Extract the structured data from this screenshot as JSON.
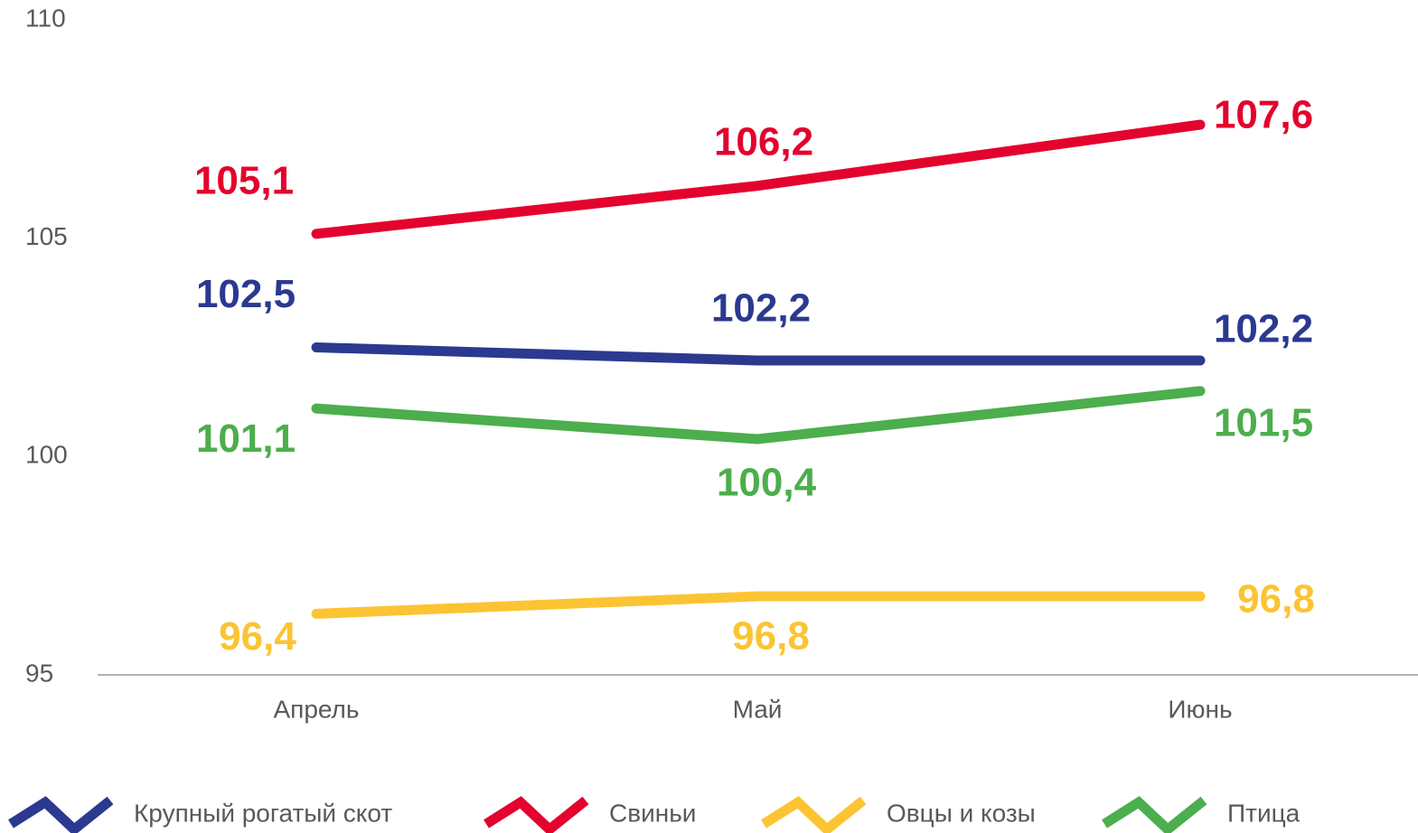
{
  "chart_data": {
    "type": "line",
    "categories": [
      "Апрель",
      "Май",
      "Июнь"
    ],
    "series": [
      {
        "name": "Крупный рогатый скот",
        "color": "#2b3990",
        "values": [
          102.5,
          102.2,
          102.2
        ],
        "value_labels": [
          "102,5",
          "102,2",
          "102,2"
        ]
      },
      {
        "name": "Свиньи",
        "color": "#e3032d",
        "values": [
          105.1,
          106.2,
          107.6
        ],
        "value_labels": [
          "105,1",
          "106,2",
          "107,6"
        ]
      },
      {
        "name": "Овцы и козы",
        "color": "#fcc433",
        "values": [
          96.4,
          96.8,
          96.8
        ],
        "value_labels": [
          "96,4",
          "96,8",
          "96,8"
        ]
      },
      {
        "name": "Птица",
        "color": "#4cae4c",
        "values": [
          101.1,
          100.4,
          101.5
        ],
        "value_labels": [
          "101,1",
          "100,4",
          "101,5"
        ]
      }
    ],
    "ylim": [
      95,
      110
    ],
    "yticks": [
      95,
      100,
      105,
      110
    ],
    "legend": "bottom"
  }
}
